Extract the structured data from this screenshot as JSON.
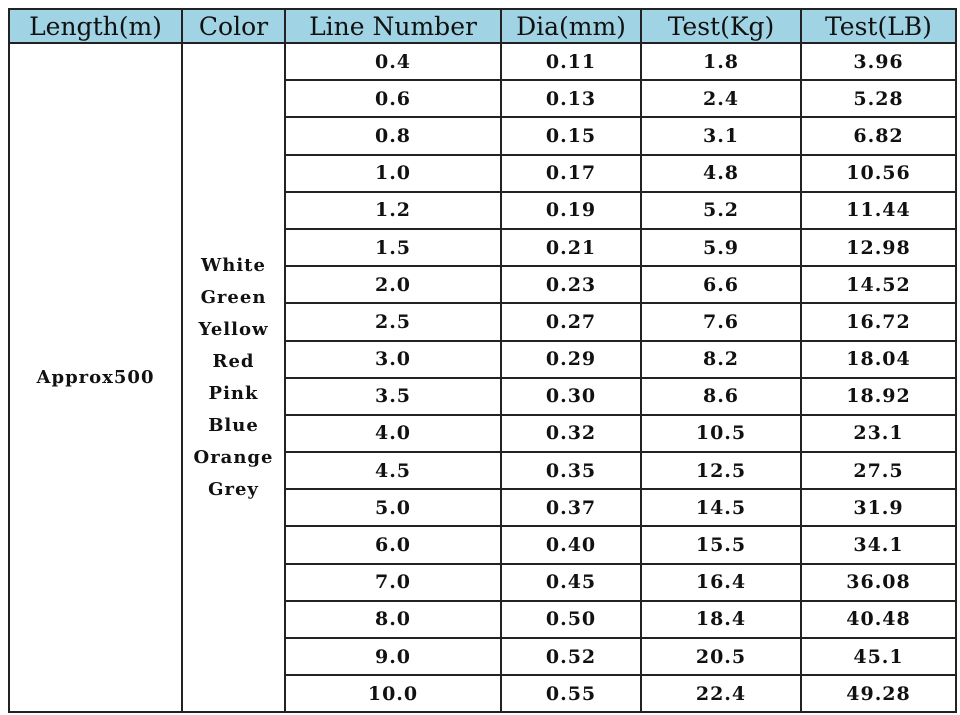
{
  "headers": [
    "Length(m)",
    "Color",
    "Line Number",
    "Dia(mm)",
    "Test(Kg)",
    "Test(LB)"
  ],
  "length": "Approx500",
  "colors": [
    "White",
    "Green",
    "Yellow",
    "Red",
    "Pink",
    "Blue",
    "Orange",
    "Grey"
  ],
  "header_bg": "#a0d4e4",
  "rows": [
    [
      "0.4",
      "0.11",
      "1.8",
      "3.96"
    ],
    [
      "0.6",
      "0.13",
      "2.4",
      "5.28"
    ],
    [
      "0.8",
      "0.15",
      "3.1",
      "6.82"
    ],
    [
      "1.0",
      "0.17",
      "4.8",
      "10.56"
    ],
    [
      "1.2",
      "0.19",
      "5.2",
      "11.44"
    ],
    [
      "1.5",
      "0.21",
      "5.9",
      "12.98"
    ],
    [
      "2.0",
      "0.23",
      "6.6",
      "14.52"
    ],
    [
      "2.5",
      "0.27",
      "7.6",
      "16.72"
    ],
    [
      "3.0",
      "0.29",
      "8.2",
      "18.04"
    ],
    [
      "3.5",
      "0.30",
      "8.6",
      "18.92"
    ],
    [
      "4.0",
      "0.32",
      "10.5",
      "23.1"
    ],
    [
      "4.5",
      "0.35",
      "12.5",
      "27.5"
    ],
    [
      "5.0",
      "0.37",
      "14.5",
      "31.9"
    ],
    [
      "6.0",
      "0.40",
      "15.5",
      "34.1"
    ],
    [
      "7.0",
      "0.45",
      "16.4",
      "36.08"
    ],
    [
      "8.0",
      "0.50",
      "18.4",
      "40.48"
    ],
    [
      "9.0",
      "0.52",
      "20.5",
      "45.1"
    ],
    [
      "10.0",
      "0.55",
      "22.4",
      "49.28"
    ]
  ]
}
